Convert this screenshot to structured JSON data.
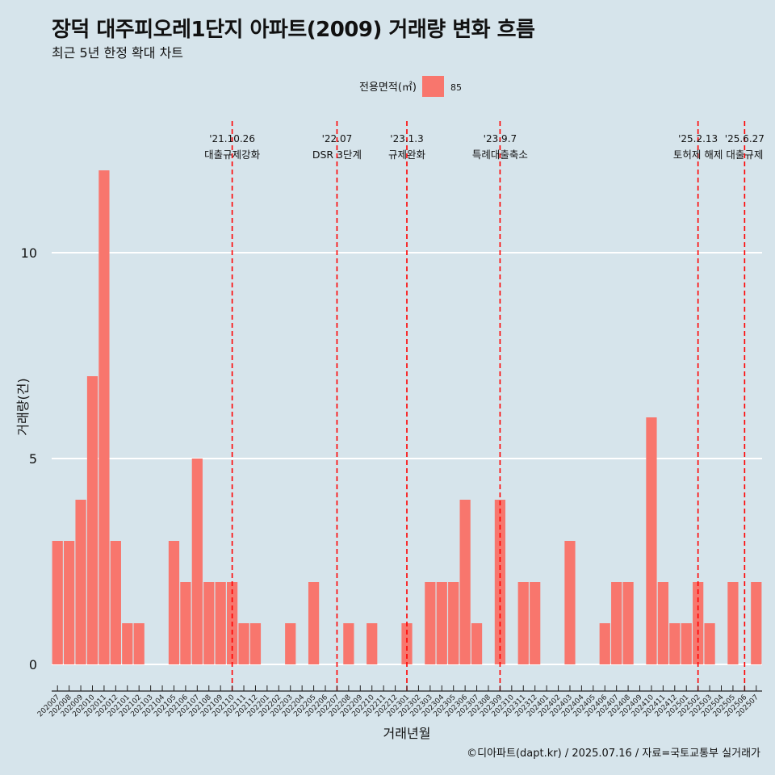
{
  "title": "장덕 대주피오레1단지 아파트(2009) 거래량 변화 흐름",
  "subtitle": "최근 5년 한정 확대 차트",
  "caption": "©디아파트(dapt.kr) / 2025.07.16 / 자료=국토교통부 실거래가",
  "legend": {
    "title": "전용면적(㎡)",
    "items": [
      {
        "label": "85",
        "color": "#f8766d"
      }
    ]
  },
  "colors": {
    "background": "#d6e4eb",
    "bar": "#f8766d",
    "event_line": "#ff0000",
    "grid": "#ffffff"
  },
  "chart_data": {
    "type": "bar",
    "xlabel": "거래년월",
    "ylabel": "거래량(건)",
    "ylim": [
      -0.5,
      12.5
    ],
    "y_ticks": [
      0,
      5,
      10
    ],
    "grid": true,
    "legend_position": "top",
    "categories": [
      "202007",
      "202008",
      "202009",
      "202010",
      "202011",
      "202012",
      "202101",
      "202102",
      "202103",
      "202104",
      "202105",
      "202106",
      "202107",
      "202108",
      "202109",
      "202110",
      "202111",
      "202112",
      "202201",
      "202202",
      "202203",
      "202204",
      "202205",
      "202206",
      "202207",
      "202208",
      "202209",
      "202210",
      "202211",
      "202212",
      "202301",
      "202302",
      "202303",
      "202304",
      "202305",
      "202306",
      "202307",
      "202308",
      "202309",
      "202310",
      "202311",
      "202312",
      "202401",
      "202402",
      "202403",
      "202404",
      "202405",
      "202406",
      "202407",
      "202408",
      "202409",
      "202410",
      "202411",
      "202412",
      "202501",
      "202502",
      "202503",
      "202504",
      "202505",
      "202506",
      "202507"
    ],
    "series": [
      {
        "name": "85",
        "values": [
          3,
          3,
          4,
          7,
          12,
          3,
          1,
          1,
          0,
          0,
          3,
          2,
          5,
          2,
          2,
          2,
          1,
          1,
          0,
          0,
          1,
          0,
          2,
          0,
          0,
          1,
          0,
          1,
          0,
          0,
          1,
          0,
          2,
          2,
          2,
          4,
          1,
          0,
          4,
          0,
          2,
          2,
          0,
          0,
          3,
          0,
          0,
          1,
          2,
          2,
          0,
          6,
          2,
          1,
          1,
          2,
          1,
          0,
          2,
          0,
          2
        ]
      }
    ],
    "events": [
      {
        "date": "'21.10.26",
        "label": "대출규제강화",
        "x": "202110"
      },
      {
        "date": "'22.07",
        "label": "DSR 3단계",
        "x": "202207"
      },
      {
        "date": "'23.1.3",
        "label": "규제완화",
        "x": "202301"
      },
      {
        "date": "'23.9.7",
        "label": "특례대출축소",
        "x": "202309"
      },
      {
        "date": "'25.2.13",
        "label": "토허제 해제",
        "x": "202502"
      },
      {
        "date": "'25.6.27",
        "label": "대출규제",
        "x": "202506"
      }
    ]
  }
}
